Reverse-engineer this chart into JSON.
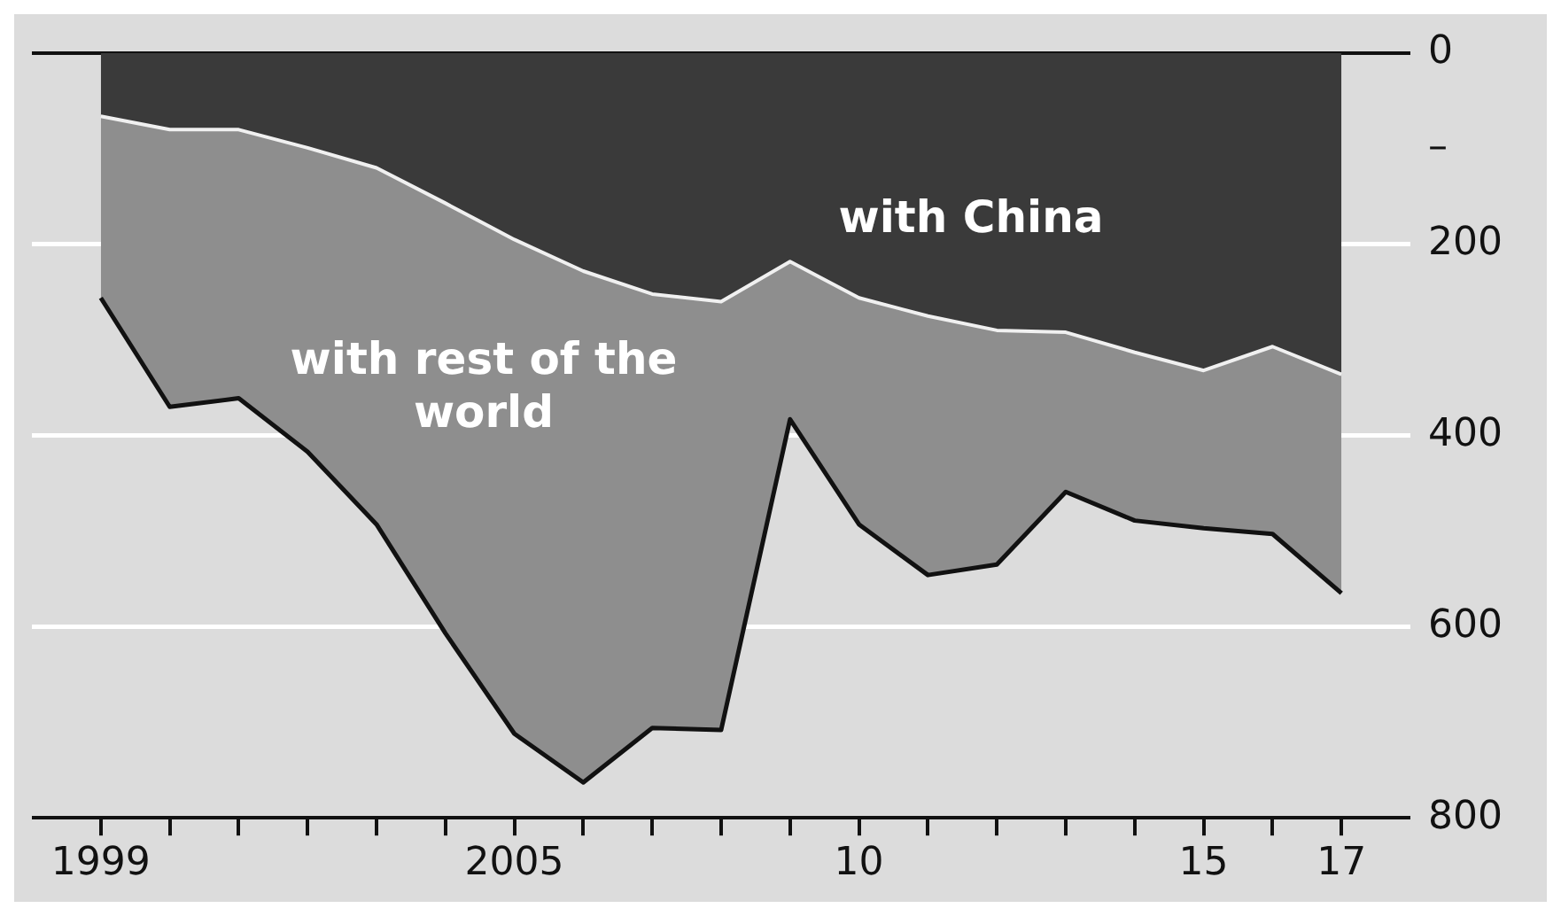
{
  "chart_data": {
    "type": "area",
    "stacked": true,
    "x": [
      1999,
      2000,
      2001,
      2002,
      2003,
      2004,
      2005,
      2006,
      2007,
      2008,
      2009,
      2010,
      2011,
      2012,
      2013,
      2014,
      2015,
      2016,
      2017
    ],
    "series": [
      {
        "name": "with China",
        "color": "#3a3a3a",
        "values": [
          66,
          80,
          80,
          99,
          120,
          157,
          195,
          228,
          252,
          260,
          218,
          256,
          275,
          290,
          292,
          313,
          332,
          307,
          336
        ]
      },
      {
        "name": "with rest of the world",
        "color": "#8e8e8e",
        "values": [
          190,
          290,
          281,
          318,
          373,
          450,
          517,
          535,
          454,
          448,
          165,
          237,
          271,
          245,
          167,
          176,
          165,
          196,
          229
        ]
      }
    ],
    "ylim": [
      800,
      0
    ],
    "yticks": [
      0,
      {
        "value": 100,
        "label": "–"
      },
      200,
      400,
      600,
      800
    ],
    "xlim": [
      1998,
      2018
    ],
    "xticks": [
      1999,
      {
        "value": 2000,
        "label": null
      },
      {
        "value": 2001,
        "label": null
      },
      {
        "value": 2002,
        "label": null
      },
      {
        "value": 2003,
        "label": null
      },
      {
        "value": 2004,
        "label": null
      },
      2005,
      {
        "value": 2006,
        "label": null
      },
      {
        "value": 2007,
        "label": null
      },
      {
        "value": 2008,
        "label": null
      },
      {
        "value": 2009,
        "label": null
      },
      {
        "value": 2010,
        "label": "10"
      },
      {
        "value": 2011,
        "label": null
      },
      {
        "value": 2012,
        "label": null
      },
      {
        "value": 2013,
        "label": null
      },
      {
        "value": 2014,
        "label": null
      },
      {
        "value": 2015,
        "label": "15"
      },
      {
        "value": 2016,
        "label": null
      },
      {
        "value": 2017,
        "label": "17"
      }
    ],
    "grid": "y",
    "legend": false
  }
}
